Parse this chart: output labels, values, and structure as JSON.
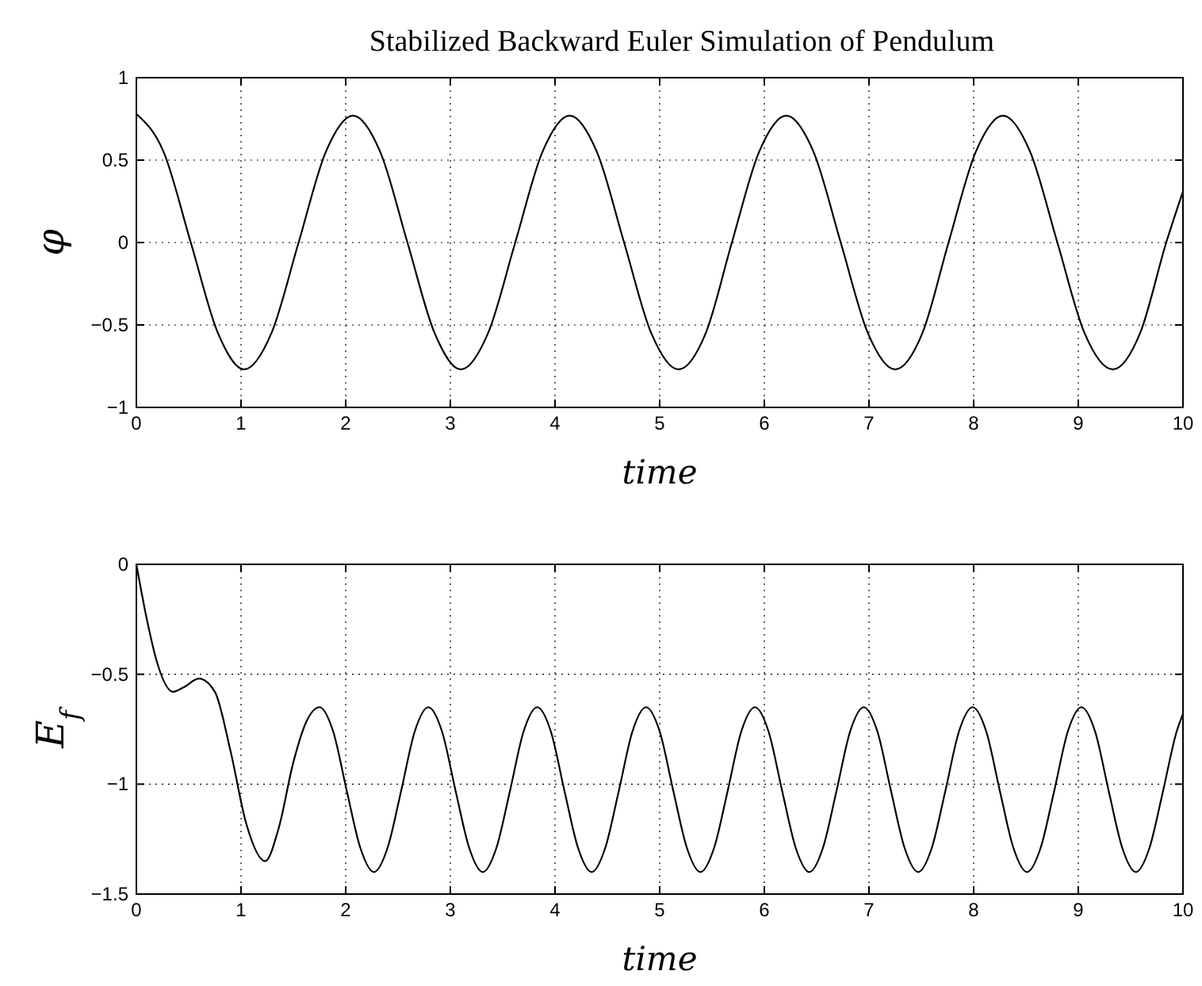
{
  "chart_data": [
    {
      "type": "line",
      "title": "Stabilized Backward Euler Simulation of Pendulum",
      "xlabel": "time",
      "ylabel": "φ",
      "xlim": [
        0,
        10
      ],
      "ylim": [
        -1,
        1
      ],
      "xticks": [
        0,
        1,
        2,
        3,
        4,
        5,
        6,
        7,
        8,
        9,
        10
      ],
      "yticks": [
        -1,
        -0.5,
        0,
        0.5,
        1
      ],
      "grid": true,
      "x": [
        0,
        0.26,
        0.52,
        0.78,
        1.03,
        1.29,
        1.55,
        1.81,
        2.07,
        2.33,
        2.59,
        2.85,
        3.1,
        3.36,
        3.62,
        3.88,
        4.14,
        4.4,
        4.66,
        4.92,
        5.18,
        5.44,
        5.69,
        5.95,
        6.21,
        6.47,
        6.73,
        6.99,
        7.25,
        7.51,
        7.76,
        8.02,
        8.28,
        8.54,
        8.8,
        9.06,
        9.33,
        9.59,
        9.84,
        10
      ],
      "series": [
        {
          "color": "#000000",
          "values": [
            0.78,
            0.55,
            0,
            -0.55,
            -0.77,
            -0.55,
            0,
            0.55,
            0.77,
            0.55,
            0,
            -0.55,
            -0.77,
            -0.55,
            0,
            0.55,
            0.77,
            0.55,
            0,
            -0.55,
            -0.77,
            -0.55,
            0,
            0.55,
            0.77,
            0.55,
            0,
            -0.55,
            -0.77,
            -0.55,
            0,
            0.55,
            0.77,
            0.55,
            0,
            -0.55,
            -0.77,
            -0.55,
            0,
            0.31
          ]
        }
      ]
    },
    {
      "type": "line",
      "xlabel": "time",
      "ylabel": "E$_{f}$",
      "xlim": [
        0,
        10
      ],
      "ylim": [
        -1.5,
        0
      ],
      "xticks": [
        0,
        1,
        2,
        3,
        4,
        5,
        6,
        7,
        8,
        9,
        10
      ],
      "yticks": [
        -1.5,
        -1,
        -0.5,
        0
      ],
      "grid": true,
      "x": [
        0,
        0.1,
        0.2,
        0.35,
        0.45,
        0.6,
        0.75,
        0.9,
        1.05,
        1.23,
        1.36,
        1.5,
        1.62,
        1.75,
        1.88,
        2.01,
        2.14,
        2.27,
        2.4,
        2.53,
        2.66,
        2.79,
        2.92,
        3.05,
        3.18,
        3.31,
        3.44,
        3.57,
        3.7,
        3.83,
        3.96,
        4.09,
        4.22,
        4.35,
        4.48,
        4.61,
        4.74,
        4.87,
        5,
        5.13,
        5.26,
        5.39,
        5.52,
        5.65,
        5.78,
        5.91,
        6.04,
        6.17,
        6.3,
        6.43,
        6.56,
        6.69,
        6.82,
        6.95,
        7.08,
        7.21,
        7.34,
        7.47,
        7.6,
        7.73,
        7.86,
        7.99,
        8.12,
        8.25,
        8.38,
        8.51,
        8.64,
        8.77,
        8.9,
        9.03,
        9.16,
        9.29,
        9.42,
        9.55,
        9.68,
        9.81,
        9.94,
        10
      ],
      "series": [
        {
          "color": "#000000",
          "values": [
            0,
            -0.25,
            -0.45,
            -0.58,
            -0.56,
            -0.52,
            -0.58,
            -0.85,
            -1.18,
            -1.35,
            -1.2,
            -0.9,
            -0.72,
            -0.65,
            -0.76,
            -1.03,
            -1.29,
            -1.4,
            -1.29,
            -1.03,
            -0.76,
            -0.65,
            -0.76,
            -1.03,
            -1.29,
            -1.4,
            -1.29,
            -1.03,
            -0.76,
            -0.65,
            -0.76,
            -1.03,
            -1.29,
            -1.4,
            -1.29,
            -1.03,
            -0.76,
            -0.65,
            -0.76,
            -1.03,
            -1.29,
            -1.4,
            -1.29,
            -1.03,
            -0.76,
            -0.65,
            -0.76,
            -1.03,
            -1.29,
            -1.4,
            -1.29,
            -1.03,
            -0.76,
            -0.65,
            -0.76,
            -1.03,
            -1.29,
            -1.4,
            -1.29,
            -1.03,
            -0.76,
            -0.65,
            -0.76,
            -1.03,
            -1.29,
            -1.4,
            -1.29,
            -1.03,
            -0.76,
            -0.65,
            -0.76,
            -1.03,
            -1.29,
            -1.4,
            -1.29,
            -1.03,
            -0.76,
            -0.68
          ]
        }
      ]
    }
  ]
}
